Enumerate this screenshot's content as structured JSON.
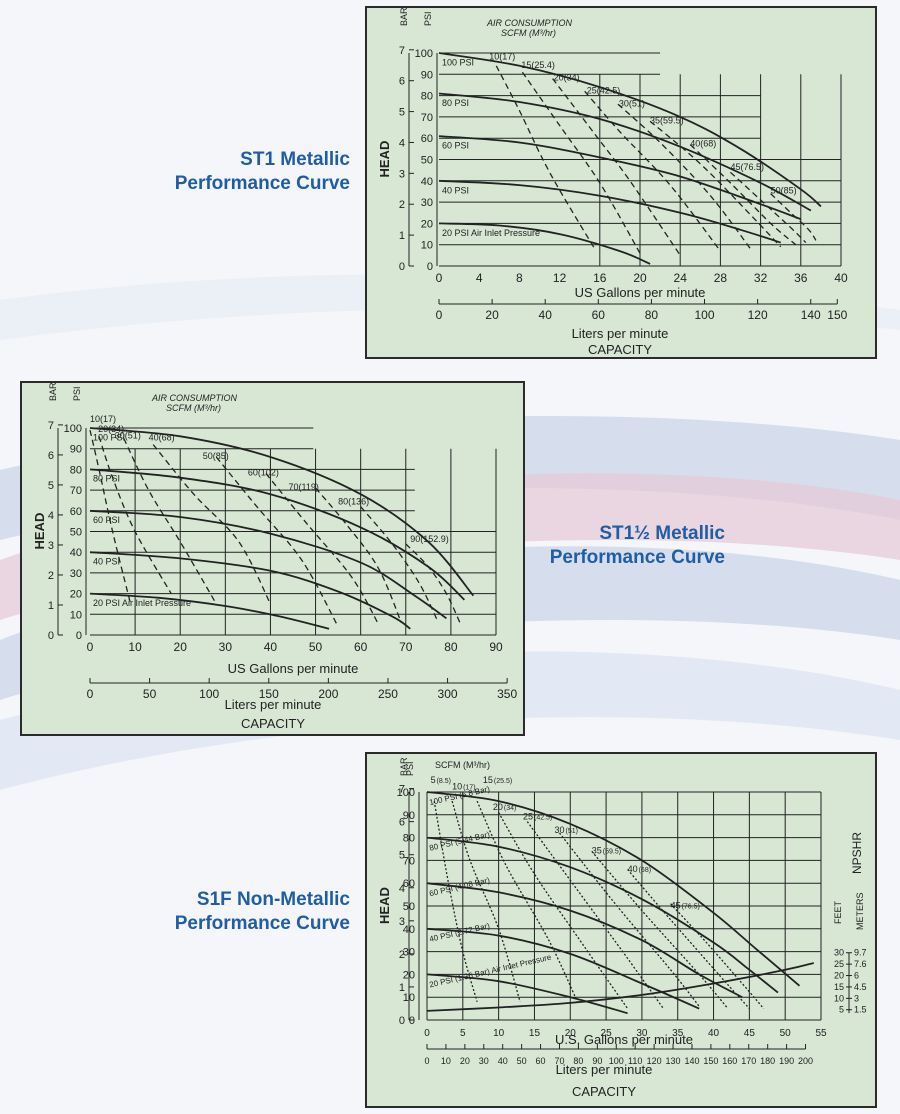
{
  "captions": {
    "st1": [
      "ST1 Metallic",
      "Performance Curve"
    ],
    "st15": [
      "ST1½ Metallic",
      "Performance Curve"
    ],
    "s1f": [
      "S1F Non-Metallic",
      "Performance Curve"
    ]
  },
  "colors": {
    "caption": "#1f5da5",
    "panel_bg": "#d7e7d4",
    "ink": "#222222"
  },
  "chart_data": [
    {
      "id": "st1",
      "type": "line",
      "title": "AIR CONSUMPTION",
      "subtitle": "SCFM (M³/hr)",
      "xlabel": "US Gallons per minute",
      "xlabel2": "Liters per minute",
      "caption_label": "CAPACITY",
      "ylabel": "HEAD",
      "y_unit_labels": [
        "BAR",
        "PSI"
      ],
      "xlim": [
        0,
        40
      ],
      "ylim": [
        0,
        100
      ],
      "x_ticks": [
        0,
        4,
        8,
        12,
        16,
        20,
        24,
        28,
        32,
        36,
        40
      ],
      "x_tick_labels": [
        "0",
        "4",
        "8",
        "12",
        "16",
        "20",
        "24",
        "28",
        "32",
        "36",
        "40"
      ],
      "y_ticks": [
        0,
        10,
        20,
        30,
        40,
        50,
        60,
        70,
        80,
        90,
        100
      ],
      "y_tick_labels": [
        "0",
        "10",
        "20",
        "30",
        "40",
        "50",
        "60",
        "70",
        "80",
        "90",
        "100"
      ],
      "bar_ticks": [
        0,
        1,
        2,
        3,
        4,
        5,
        6,
        7
      ],
      "bar_tick_labels": [
        "0",
        "1",
        "2",
        "3",
        "4",
        "5",
        "6",
        "7"
      ],
      "liters_ticks": [
        0,
        20,
        40,
        60,
        80,
        100,
        120,
        140,
        150
      ],
      "liters_tick_labels": [
        "0",
        "20",
        "40",
        "60",
        "80",
        "100",
        "120",
        "140",
        "150"
      ],
      "grid_x_from": 8,
      "grid_x_to": 40,
      "grid_y_to": 50,
      "grid_extra_from": 16,
      "grid_extra_y_to": 90,
      "series": [
        {
          "name": "100 PSI",
          "x": [
            0,
            8,
            16,
            24,
            30,
            36,
            38
          ],
          "y": [
            100,
            94,
            84,
            70,
            55,
            36,
            28
          ]
        },
        {
          "name": "80 PSI",
          "x": [
            0,
            8,
            16,
            24,
            32,
            37
          ],
          "y": [
            81,
            77,
            69,
            56,
            39,
            26
          ]
        },
        {
          "name": "60 PSI",
          "x": [
            0,
            8,
            16,
            24,
            32,
            36
          ],
          "y": [
            61,
            58,
            51,
            42,
            29,
            22
          ]
        },
        {
          "name": "40 PSI",
          "x": [
            0,
            8,
            16,
            24,
            30,
            34
          ],
          "y": [
            40,
            38,
            33,
            25,
            17,
            11
          ]
        },
        {
          "name": "20 PSI Air Inlet Pressure",
          "x": [
            0,
            6,
            12,
            18,
            21
          ],
          "y": [
            20,
            19,
            15,
            7,
            1
          ]
        }
      ],
      "air_consumption": [
        {
          "label": "10(17)",
          "x": [
            5.7,
            8,
            11,
            15.5
          ],
          "y": [
            94,
            73,
            44,
            8
          ],
          "lx": 5.0,
          "ly": 97
        },
        {
          "label": "15(25.4)",
          "x": [
            8.3,
            12,
            16,
            20
          ],
          "y": [
            91,
            66,
            39,
            6
          ],
          "lx": 8.2,
          "ly": 93
        },
        {
          "label": "20(34)",
          "x": [
            11.3,
            15,
            19,
            24
          ],
          "y": [
            88,
            65,
            40,
            5
          ],
          "lx": 11.4,
          "ly": 87
        },
        {
          "label": "25(42.5)",
          "x": [
            14.5,
            18,
            23,
            28
          ],
          "y": [
            82,
            63,
            38,
            7
          ],
          "lx": 14.7,
          "ly": 81
        },
        {
          "label": "30(51)",
          "x": [
            17.8,
            22,
            27,
            31
          ],
          "y": [
            76,
            58,
            33,
            8
          ],
          "lx": 17.9,
          "ly": 75
        },
        {
          "label": "35(59.5)",
          "x": [
            21,
            26,
            31,
            34
          ],
          "y": [
            68,
            48,
            24,
            9
          ],
          "lx": 21.0,
          "ly": 67
        },
        {
          "label": "40(68)",
          "x": [
            25,
            29,
            33,
            35.5
          ],
          "y": [
            57,
            39,
            20,
            10
          ],
          "lx": 25.0,
          "ly": 56
        },
        {
          "label": "45(76.5)",
          "x": [
            29,
            32,
            35,
            36.5
          ],
          "y": [
            44,
            31,
            18,
            11
          ],
          "lx": 29.0,
          "ly": 45
        },
        {
          "label": "50(85)",
          "x": [
            33,
            35,
            36.8,
            37.5
          ],
          "y": [
            34,
            25,
            17,
            12
          ],
          "lx": 33.0,
          "ly": 34
        }
      ]
    },
    {
      "id": "st15",
      "type": "line",
      "title": "AIR CONSUMPTION",
      "subtitle": "SCFM (M³/hr)",
      "xlabel": "US Gallons per minute",
      "xlabel2": "Liters per minute",
      "caption_label": "CAPACITY",
      "ylabel": "HEAD",
      "y_unit_labels": [
        "BAR",
        "PSI"
      ],
      "xlim": [
        0,
        90
      ],
      "ylim": [
        0,
        100
      ],
      "x_ticks": [
        0,
        10,
        20,
        30,
        40,
        50,
        60,
        70,
        80,
        90
      ],
      "x_tick_labels": [
        "0",
        "10",
        "20",
        "30",
        "40",
        "50",
        "60",
        "70",
        "80",
        "90"
      ],
      "y_ticks": [
        0,
        10,
        20,
        30,
        40,
        50,
        60,
        70,
        80,
        90,
        100
      ],
      "y_tick_labels": [
        "0",
        "10",
        "20",
        "30",
        "40",
        "50",
        "60",
        "70",
        "80",
        "90",
        "100"
      ],
      "bar_ticks": [
        0,
        1,
        2,
        3,
        4,
        5,
        6,
        7
      ],
      "bar_tick_labels": [
        "0",
        "1",
        "2",
        "3",
        "4",
        "5",
        "6",
        "7"
      ],
      "liters_ticks": [
        0,
        50,
        100,
        150,
        200,
        250,
        300,
        350
      ],
      "liters_tick_labels": [
        "0",
        "50",
        "100",
        "150",
        "200",
        "250",
        "300",
        "350"
      ],
      "grid_x_from": 10,
      "grid_x_to": 90,
      "grid_y_to": 50,
      "grid_extra_from": 10,
      "grid_extra_y_to": 90,
      "series": [
        {
          "name": "100 PSI",
          "x": [
            0,
            20,
            40,
            60,
            75,
            85
          ],
          "y": [
            100,
            96,
            86,
            68,
            45,
            19
          ]
        },
        {
          "name": "80 PSI",
          "x": [
            0,
            20,
            40,
            60,
            75,
            83
          ],
          "y": [
            80,
            76,
            68,
            52,
            33,
            17
          ]
        },
        {
          "name": "60 PSI",
          "x": [
            0,
            20,
            40,
            60,
            72,
            79
          ],
          "y": [
            60,
            57,
            49,
            35,
            19,
            8
          ]
        },
        {
          "name": "40 PSI",
          "x": [
            0,
            20,
            40,
            55,
            67,
            71
          ],
          "y": [
            40,
            37,
            31,
            21,
            9,
            3
          ]
        },
        {
          "name": "20 PSI Air Inlet Pressure",
          "x": [
            0,
            15,
            30,
            42,
            53
          ],
          "y": [
            20,
            18,
            14,
            9,
            3
          ]
        }
      ],
      "air_consumption": [
        {
          "label": "10(17)",
          "x": [
            0,
            2,
            5,
            9
          ],
          "y": [
            99,
            80,
            50,
            15
          ],
          "lx": 0.0,
          "ly": 103
        },
        {
          "label": "20(34)",
          "x": [
            2,
            5,
            10,
            18
          ],
          "y": [
            96,
            76,
            50,
            20
          ],
          "lx": 1.8,
          "ly": 98
        },
        {
          "label": "30(51)",
          "x": [
            7.5,
            13,
            20,
            28
          ],
          "y": [
            95,
            70,
            45,
            15
          ],
          "lx": 5.5,
          "ly": 95
        },
        {
          "label": "40(68)",
          "x": [
            14,
            23,
            33,
            40
          ],
          "y": [
            92,
            68,
            45,
            15
          ],
          "lx": 13.0,
          "ly": 94
        },
        {
          "label": "50(85)",
          "x": [
            28,
            37,
            47,
            55
          ],
          "y": [
            86,
            62,
            36,
            4
          ],
          "lx": 25.0,
          "ly": 85
        },
        {
          "label": "60(102)",
          "x": [
            39,
            48,
            58,
            64
          ],
          "y": [
            78,
            54,
            28,
            5
          ],
          "lx": 35.0,
          "ly": 77
        },
        {
          "label": "70(119)",
          "x": [
            50,
            57,
            64,
            69
          ],
          "y": [
            71,
            53,
            32,
            6
          ],
          "lx": 44.0,
          "ly": 70
        },
        {
          "label": "80(136)",
          "x": [
            60,
            67,
            73,
            77
          ],
          "y": [
            62,
            44,
            25,
            7
          ],
          "lx": 55.0,
          "ly": 63
        },
        {
          "label": "90(152.9)",
          "x": [
            70,
            75,
            79,
            82
          ],
          "y": [
            44,
            33,
            20,
            6
          ],
          "lx": 71.0,
          "ly": 45
        }
      ]
    },
    {
      "id": "s1f",
      "type": "line",
      "title": "SCFM (M³/hr)",
      "subtitle": "",
      "xlabel": "U.S. Gallons per minute",
      "xlabel2": "Liters per minute",
      "caption_label": "CAPACITY",
      "ylabel": "HEAD",
      "y_unit_labels": [
        "BAR",
        "PSI"
      ],
      "right_label": "NPSHR",
      "right_units": [
        "FEET",
        "METERS"
      ],
      "xlim": [
        0,
        55
      ],
      "ylim": [
        0,
        100
      ],
      "x_ticks": [
        0,
        5,
        10,
        15,
        20,
        25,
        30,
        35,
        40,
        45,
        50,
        55
      ],
      "x_tick_labels": [
        "0",
        "5",
        "10",
        "15",
        "20",
        "25",
        "30",
        "35",
        "40",
        "45",
        "50",
        "55"
      ],
      "y_ticks": [
        0,
        10,
        20,
        30,
        40,
        50,
        60,
        70,
        80,
        90,
        100
      ],
      "y_tick_labels": [
        "0",
        "10",
        "20",
        "30",
        "40",
        "50",
        "60",
        "70",
        "80",
        "90",
        "100"
      ],
      "bar_ticks": [
        0,
        1,
        2,
        3,
        4,
        5,
        6,
        7
      ],
      "bar_tick_labels": [
        "0",
        "1",
        "2",
        "3",
        "4",
        "5",
        "6",
        "7"
      ],
      "liters_ticks": [
        0,
        10,
        20,
        30,
        40,
        50,
        60,
        70,
        80,
        90,
        100,
        110,
        120,
        130,
        140,
        150,
        160,
        170,
        180,
        190,
        200
      ],
      "liters_tick_labels": [
        "0",
        "10",
        "20",
        "30",
        "40",
        "50",
        "60",
        "70",
        "80",
        "90",
        "100",
        "110",
        "120",
        "130",
        "140",
        "150",
        "160",
        "170",
        "180",
        "190",
        "200"
      ],
      "npshr_feet": [
        "30",
        "25",
        "20",
        "15",
        "10",
        "5"
      ],
      "npshr_meters": [
        "9.7",
        "7.6",
        "6",
        "4.5",
        "3",
        "1.5"
      ],
      "npshr_values": [
        30,
        25,
        20,
        15,
        10,
        5
      ],
      "grid_x_from": 0,
      "grid_x_to": 55,
      "grid_y_to": 100,
      "grid_extra_from": 0,
      "grid_extra_y_to": 100,
      "series": [
        {
          "name": "100 PSI (6.8 Bar)",
          "x": [
            0,
            10,
            20,
            30,
            40,
            46,
            52
          ],
          "y": [
            100,
            96,
            86,
            70,
            47,
            31,
            15
          ]
        },
        {
          "name": "80 PSI (5.44 Bar)",
          "x": [
            0,
            10,
            20,
            30,
            40,
            45,
            49
          ],
          "y": [
            80,
            76,
            67,
            53,
            34,
            22,
            12
          ]
        },
        {
          "name": "60 PSI (4.08 Bar)",
          "x": [
            0,
            10,
            20,
            30,
            38,
            44
          ],
          "y": [
            60,
            56,
            48,
            35,
            20,
            10
          ]
        },
        {
          "name": "40 PSI (2.72 Bar)",
          "x": [
            0,
            10,
            20,
            30,
            38
          ],
          "y": [
            40,
            37,
            29,
            16,
            5
          ]
        },
        {
          "name": "20 PSI (1.36 Bar) Air Inlet Pressure",
          "x": [
            0,
            10,
            20,
            28
          ],
          "y": [
            20,
            17,
            10,
            3
          ]
        },
        {
          "name": "NPSHR",
          "x": [
            0,
            10,
            20,
            30,
            40,
            50,
            54
          ],
          "y": [
            4,
            5.5,
            7.5,
            11,
            16,
            22,
            25
          ]
        }
      ],
      "air_consumption": [
        {
          "label": "5",
          "unit": "(8.5)",
          "x": [
            1,
            3,
            5,
            7
          ],
          "y": [
            96,
            60,
            30,
            8
          ],
          "lx": 0.5,
          "ly": 104
        },
        {
          "label": "10",
          "unit": "(17)",
          "x": [
            3.5,
            6,
            10,
            13
          ],
          "y": [
            96,
            70,
            40,
            8
          ],
          "lx": 3.5,
          "ly": 101
        },
        {
          "label": "15",
          "unit": "(25.5)",
          "x": [
            7,
            11,
            17,
            21
          ],
          "y": [
            96,
            68,
            35,
            8
          ],
          "lx": 7.8,
          "ly": 104
        },
        {
          "label": "20",
          "unit": "(34)",
          "x": [
            10,
            15,
            22,
            28
          ],
          "y": [
            91,
            64,
            32,
            5
          ],
          "lx": 9.2,
          "ly": 92
        },
        {
          "label": "25",
          "unit": "(42.5)",
          "x": [
            14,
            21,
            28,
            33
          ],
          "y": [
            87,
            57,
            27,
            5
          ],
          "lx": 13.4,
          "ly": 88
        },
        {
          "label": "30",
          "unit": "(51)",
          "x": [
            18.5,
            26,
            34,
            38
          ],
          "y": [
            82,
            52,
            22,
            6
          ],
          "lx": 17.8,
          "ly": 82
        },
        {
          "label": "35",
          "unit": "(59.5)",
          "x": [
            23,
            30,
            38,
            42
          ],
          "y": [
            74,
            48,
            20,
            5
          ],
          "lx": 23.0,
          "ly": 73
        },
        {
          "label": "40",
          "unit": "(68)",
          "x": [
            28,
            34,
            41,
            45
          ],
          "y": [
            66,
            44,
            19,
            5
          ],
          "lx": 28.0,
          "ly": 65
        },
        {
          "label": "45",
          "unit": "(76.5)",
          "x": [
            34,
            39,
            44,
            47
          ],
          "y": [
            51,
            34,
            16,
            5
          ],
          "lx": 34.0,
          "ly": 49
        }
      ]
    }
  ]
}
